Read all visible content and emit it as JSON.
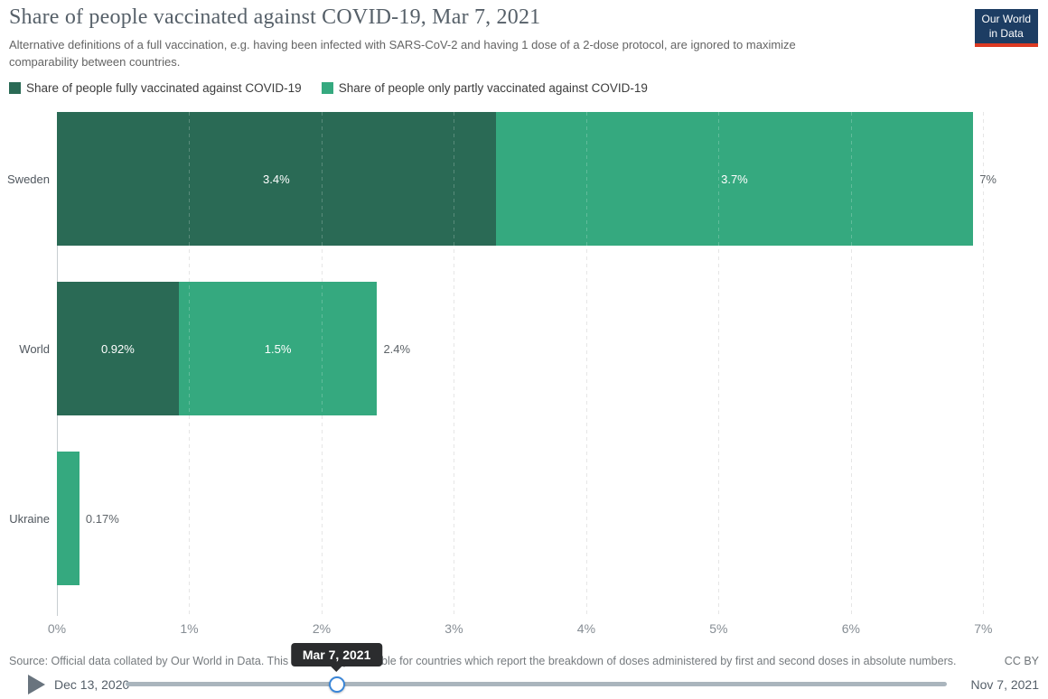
{
  "header": {
    "title": "Share of people vaccinated against COVID-19, Mar 7, 2021",
    "subtitle": "Alternative definitions of a full vaccination, e.g. having been infected with SARS-CoV-2 and having 1 dose of a 2-dose protocol, are ignored to maximize comparability between countries.",
    "logo": {
      "line1": "Our World",
      "line2": "in Data",
      "bg_color": "#1d3d63",
      "accent_color": "#dc3a23"
    }
  },
  "legend": {
    "items": [
      {
        "label": "Share of people fully vaccinated against COVID-19",
        "color": "#2a6a55"
      },
      {
        "label": "Share of people only partly vaccinated against COVID-19",
        "color": "#35a97f"
      }
    ]
  },
  "chart_data": {
    "type": "bar",
    "orientation": "horizontal",
    "stacked": true,
    "title": "Share of people vaccinated against COVID-19, Mar 7, 2021",
    "categories": [
      "Sweden",
      "World",
      "Ukraine"
    ],
    "series": [
      {
        "name": "Share of people fully vaccinated against COVID-19",
        "color": "#2a6a55",
        "values": [
          3.4,
          0.92,
          0
        ]
      },
      {
        "name": "Share of people only partly vaccinated against COVID-19",
        "color": "#35a97f",
        "values": [
          3.7,
          1.5,
          0.17
        ]
      }
    ],
    "bar_labels": [
      {
        "fully": "3.4%",
        "partly": "3.7%",
        "total": "7%"
      },
      {
        "fully": "0.92%",
        "partly": "1.5%",
        "total": "2.4%"
      },
      {
        "fully": "",
        "partly": "",
        "total": "0.17%"
      }
    ],
    "totals": [
      7.1,
      2.42,
      0.17
    ],
    "xlim": [
      0,
      7.1
    ],
    "x_ticks": [
      0,
      1,
      2,
      3,
      4,
      5,
      6,
      7
    ],
    "x_tick_labels": [
      "0%",
      "1%",
      "2%",
      "3%",
      "4%",
      "5%",
      "6%",
      "7%"
    ],
    "grid": "vertical-dashed",
    "legend_position": "top-left",
    "label_color_inside": "#ffffff",
    "label_color_outside": "#5d6368"
  },
  "footer": {
    "source": "Source: Official data collated by Our World in Data. This data is only available for countries which report the breakdown of doses administered by first and second doses in absolute numbers.",
    "license": "CC BY"
  },
  "timeline": {
    "start_date": "Dec 13, 2020",
    "end_date": "Nov 7, 2021",
    "current_date": "Mar 7, 2021",
    "handle_position_pct": 25.7,
    "accent_color": "#3a86d8"
  }
}
